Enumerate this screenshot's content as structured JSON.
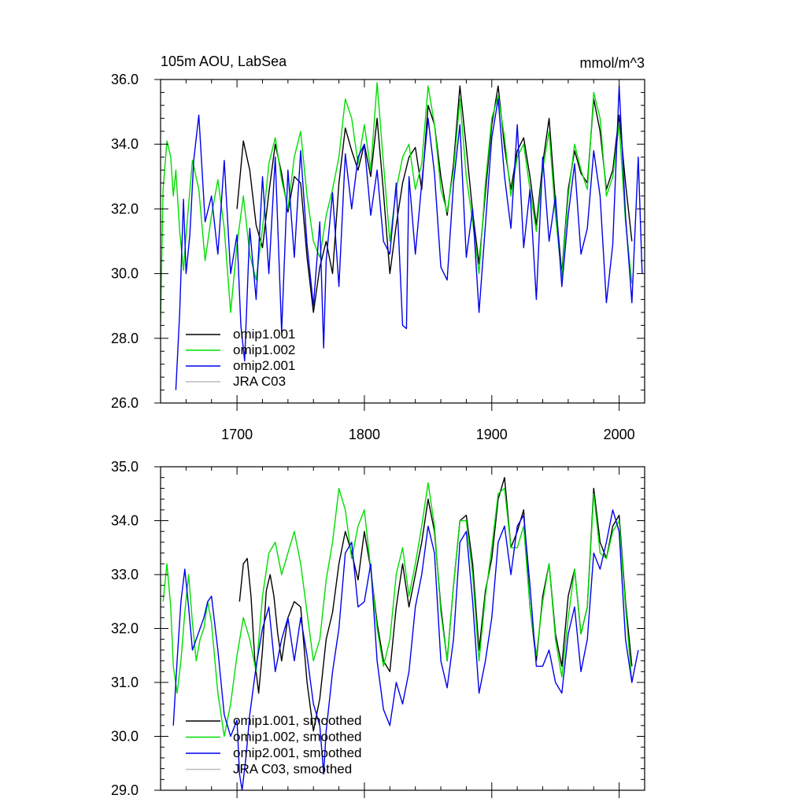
{
  "chart_data": [
    {
      "type": "line",
      "title": "105m AOU, LabSea",
      "units": "mmol/m^3",
      "xlim": [
        1640,
        2020
      ],
      "ylim": [
        26.0,
        36.0
      ],
      "x_ticks": [
        1700,
        1800,
        1900,
        2000
      ],
      "x_tick_labels": [
        "1700",
        "1800",
        "1900",
        "2000"
      ],
      "y_ticks": [
        26.0,
        28.0,
        30.0,
        32.0,
        34.0,
        36.0
      ],
      "y_tick_labels": [
        "26.0",
        "28.0",
        "30.0",
        "32.0",
        "34.0",
        "36.0"
      ],
      "legend": {
        "placement": "bottom-left",
        "entries": [
          "omip1.001",
          "omip1.002",
          "omip2.001",
          "JRA C03"
        ]
      },
      "series": [
        {
          "name": "omip1.001",
          "color": "#000000",
          "x": [
            1700,
            1705,
            1710,
            1715,
            1720,
            1725,
            1730,
            1735,
            1740,
            1745,
            1750,
            1755,
            1760,
            1765,
            1770,
            1775,
            1780,
            1785,
            1790,
            1795,
            1800,
            1805,
            1810,
            1815,
            1820,
            1825,
            1830,
            1835,
            1840,
            1845,
            1850,
            1855,
            1860,
            1865,
            1870,
            1875,
            1880,
            1885,
            1890,
            1895,
            1900,
            1905,
            1910,
            1915,
            1920,
            1925,
            1930,
            1935,
            1940,
            1945,
            1950,
            1955,
            1960,
            1965,
            1970,
            1975,
            1980,
            1985,
            1990,
            1995,
            2000,
            2005,
            2010
          ],
          "values": [
            32.0,
            34.1,
            33.2,
            31.5,
            30.8,
            32.5,
            34.0,
            33.1,
            31.9,
            33.0,
            32.8,
            30.5,
            28.8,
            30.2,
            31.0,
            30.0,
            32.8,
            34.5,
            33.8,
            33.2,
            34.0,
            33.0,
            34.8,
            32.5,
            30.0,
            31.5,
            32.8,
            33.6,
            33.9,
            32.6,
            35.2,
            34.6,
            33.0,
            31.8,
            33.4,
            35.8,
            33.9,
            31.9,
            30.3,
            32.5,
            34.6,
            35.8,
            33.9,
            32.6,
            33.8,
            34.2,
            33.0,
            31.5,
            33.4,
            34.8,
            32.2,
            30.0,
            32.6,
            33.8,
            33.1,
            32.8,
            35.4,
            34.4,
            32.6,
            33.2,
            34.9,
            32.8,
            31.0
          ]
        },
        {
          "name": "omip1.002",
          "color": "#00dd00",
          "x": [
            1640,
            1642,
            1645,
            1648,
            1650,
            1652,
            1655,
            1658,
            1660,
            1665,
            1670,
            1675,
            1680,
            1685,
            1690,
            1695,
            1700,
            1705,
            1710,
            1715,
            1720,
            1725,
            1730,
            1735,
            1740,
            1745,
            1750,
            1755,
            1760,
            1765,
            1770,
            1775,
            1780,
            1785,
            1790,
            1795,
            1800,
            1805,
            1810,
            1815,
            1820,
            1825,
            1830,
            1835,
            1840,
            1845,
            1850,
            1855,
            1860,
            1865,
            1870,
            1875,
            1880,
            1885,
            1890,
            1895,
            1900,
            1905,
            1910,
            1915,
            1920,
            1925,
            1930,
            1935,
            1940,
            1945,
            1950,
            1955,
            1960,
            1965,
            1970,
            1975,
            1980,
            1985,
            1990,
            1995,
            2000,
            2005,
            2010
          ],
          "values": [
            28.5,
            32.6,
            34.1,
            33.6,
            32.4,
            33.2,
            31.3,
            30.1,
            31.2,
            33.5,
            32.6,
            30.4,
            31.8,
            32.9,
            31.4,
            28.8,
            30.9,
            32.4,
            30.6,
            29.8,
            31.4,
            33.4,
            34.2,
            32.9,
            32.0,
            33.6,
            34.4,
            32.4,
            31.0,
            30.5,
            31.8,
            32.6,
            33.6,
            35.4,
            34.8,
            33.4,
            34.6,
            33.2,
            35.9,
            33.4,
            31.0,
            32.6,
            33.6,
            34.0,
            32.6,
            33.4,
            35.8,
            34.6,
            32.6,
            31.9,
            33.2,
            35.4,
            33.0,
            31.6,
            30.0,
            32.8,
            34.8,
            35.5,
            34.2,
            32.4,
            33.6,
            34.0,
            32.6,
            31.3,
            33.2,
            34.4,
            31.8,
            29.9,
            32.4,
            34.0,
            33.2,
            32.6,
            35.6,
            34.8,
            32.4,
            33.0,
            34.6,
            31.6,
            29.7
          ]
        },
        {
          "name": "omip2.001",
          "color": "#0000ee",
          "x": [
            1652,
            1655,
            1658,
            1660,
            1663,
            1666,
            1670,
            1675,
            1680,
            1685,
            1690,
            1695,
            1700,
            1703,
            1706,
            1710,
            1715,
            1720,
            1725,
            1730,
            1735,
            1740,
            1745,
            1750,
            1755,
            1760,
            1765,
            1768,
            1770,
            1775,
            1780,
            1785,
            1790,
            1795,
            1800,
            1805,
            1810,
            1815,
            1820,
            1825,
            1830,
            1833,
            1835,
            1840,
            1845,
            1850,
            1855,
            1860,
            1865,
            1870,
            1875,
            1880,
            1885,
            1890,
            1895,
            1900,
            1905,
            1910,
            1915,
            1920,
            1925,
            1930,
            1935,
            1940,
            1945,
            1950,
            1955,
            1960,
            1965,
            1970,
            1975,
            1980,
            1985,
            1990,
            1995,
            2000,
            2005,
            2010,
            2015,
            2018
          ],
          "values": [
            26.4,
            28.8,
            32.3,
            30.0,
            31.2,
            33.5,
            34.9,
            31.6,
            32.4,
            30.6,
            33.5,
            30.0,
            31.2,
            28.4,
            27.3,
            31.4,
            29.2,
            33.0,
            30.0,
            33.6,
            28.2,
            33.2,
            30.5,
            33.8,
            30.9,
            29.0,
            31.6,
            27.7,
            30.4,
            32.5,
            29.6,
            33.7,
            32.0,
            33.6,
            34.0,
            31.8,
            33.2,
            31.0,
            30.6,
            32.8,
            28.4,
            28.3,
            33.0,
            30.6,
            32.8,
            34.8,
            33.1,
            30.2,
            29.8,
            32.8,
            34.6,
            30.5,
            32.0,
            28.8,
            31.5,
            34.2,
            35.4,
            33.0,
            31.4,
            34.6,
            30.8,
            32.6,
            29.2,
            33.6,
            31.0,
            32.4,
            29.6,
            31.8,
            33.4,
            30.6,
            31.4,
            33.8,
            32.4,
            29.1,
            30.9,
            35.8,
            31.8,
            29.1,
            33.6,
            30.0
          ]
        },
        {
          "name": "JRA C03",
          "color": "#bbbbbb",
          "x": [],
          "values": []
        }
      ]
    },
    {
      "type": "line",
      "xlim": [
        1640,
        2020
      ],
      "ylim": [
        29.0,
        35.0
      ],
      "x_ticks": [
        1700,
        1800,
        1900,
        2000
      ],
      "y_ticks": [
        29.0,
        30.0,
        31.0,
        32.0,
        33.0,
        34.0,
        35.0
      ],
      "y_tick_labels": [
        "29.0",
        "30.0",
        "31.0",
        "32.0",
        "33.0",
        "34.0",
        "35.0"
      ],
      "legend": {
        "placement": "bottom-left",
        "entries": [
          "omip1.001, smoothed",
          "omip1.002, smoothed",
          "omip2.001, smoothed",
          "JRA C03, smoothed"
        ]
      },
      "series": [
        {
          "name": "omip1.001, smoothed",
          "color": "#000000",
          "x": [
            1702,
            1705,
            1708,
            1711,
            1714,
            1717,
            1720,
            1723,
            1726,
            1729,
            1732,
            1735,
            1740,
            1745,
            1750,
            1755,
            1760,
            1765,
            1770,
            1775,
            1780,
            1785,
            1790,
            1795,
            1800,
            1805,
            1810,
            1815,
            1820,
            1825,
            1830,
            1835,
            1840,
            1845,
            1850,
            1855,
            1860,
            1865,
            1870,
            1875,
            1880,
            1885,
            1890,
            1895,
            1900,
            1905,
            1910,
            1915,
            1920,
            1925,
            1930,
            1935,
            1940,
            1945,
            1950,
            1955,
            1960,
            1965,
            1970,
            1975,
            1980,
            1985,
            1990,
            1995,
            2000,
            2005,
            2010
          ],
          "values": [
            32.5,
            33.2,
            33.3,
            32.6,
            31.4,
            30.8,
            31.6,
            32.7,
            33.0,
            32.6,
            31.9,
            31.4,
            32.2,
            32.5,
            32.4,
            31.0,
            30.1,
            30.7,
            31.8,
            32.3,
            33.2,
            33.8,
            33.4,
            32.9,
            33.8,
            33.1,
            32.1,
            31.4,
            31.2,
            32.4,
            33.2,
            32.4,
            33.0,
            33.6,
            34.4,
            33.8,
            32.4,
            31.4,
            32.8,
            34.0,
            34.1,
            33.2,
            31.6,
            32.7,
            33.3,
            34.4,
            34.8,
            33.5,
            33.8,
            34.2,
            32.4,
            31.4,
            32.6,
            33.2,
            31.9,
            31.3,
            32.6,
            33.1,
            31.9,
            32.4,
            34.6,
            33.6,
            33.3,
            33.9,
            34.1,
            32.5,
            31.3
          ]
        },
        {
          "name": "omip1.002, smoothed",
          "color": "#00dd00",
          "x": [
            1642,
            1645,
            1648,
            1650,
            1653,
            1656,
            1659,
            1662,
            1665,
            1668,
            1671,
            1674,
            1677,
            1680,
            1685,
            1690,
            1695,
            1700,
            1705,
            1710,
            1715,
            1720,
            1725,
            1730,
            1735,
            1740,
            1745,
            1750,
            1755,
            1760,
            1765,
            1770,
            1775,
            1780,
            1785,
            1790,
            1795,
            1800,
            1805,
            1810,
            1815,
            1820,
            1825,
            1830,
            1835,
            1840,
            1845,
            1850,
            1855,
            1860,
            1865,
            1870,
            1875,
            1880,
            1885,
            1890,
            1895,
            1900,
            1905,
            1910,
            1915,
            1920,
            1925,
            1930,
            1935,
            1940,
            1945,
            1950,
            1955,
            1960,
            1965,
            1970,
            1975,
            1980,
            1985,
            1990,
            1995,
            2000,
            2005,
            2010
          ],
          "values": [
            32.5,
            33.2,
            32.4,
            31.3,
            30.8,
            31.4,
            32.3,
            33.0,
            32.1,
            31.4,
            31.8,
            32.0,
            32.5,
            32.1,
            30.8,
            30.0,
            30.6,
            31.5,
            32.2,
            31.8,
            31.2,
            32.6,
            33.4,
            33.6,
            33.0,
            33.4,
            33.8,
            33.2,
            32.3,
            31.4,
            31.8,
            32.9,
            33.6,
            34.6,
            34.2,
            33.3,
            33.9,
            34.2,
            33.1,
            32.0,
            31.3,
            31.8,
            33.0,
            33.5,
            32.6,
            33.2,
            33.9,
            34.7,
            33.9,
            32.3,
            31.4,
            32.8,
            34.0,
            34.0,
            33.0,
            31.4,
            32.6,
            33.5,
            34.5,
            34.6,
            33.5,
            33.5,
            33.9,
            32.4,
            31.5,
            32.5,
            33.2,
            31.8,
            31.1,
            32.2,
            33.1,
            31.9,
            32.4,
            34.5,
            33.4,
            33.3,
            33.8,
            34.0,
            32.4,
            31.0
          ]
        },
        {
          "name": "omip2.001, smoothed",
          "color": "#0000ee",
          "x": [
            1650,
            1653,
            1656,
            1659,
            1662,
            1665,
            1668,
            1671,
            1674,
            1677,
            1680,
            1685,
            1690,
            1695,
            1700,
            1702,
            1704,
            1707,
            1710,
            1715,
            1720,
            1725,
            1730,
            1735,
            1740,
            1745,
            1750,
            1755,
            1760,
            1765,
            1768,
            1770,
            1775,
            1780,
            1785,
            1790,
            1795,
            1800,
            1805,
            1810,
            1815,
            1820,
            1825,
            1830,
            1835,
            1840,
            1845,
            1850,
            1855,
            1860,
            1865,
            1870,
            1875,
            1880,
            1885,
            1890,
            1895,
            1900,
            1905,
            1910,
            1915,
            1920,
            1925,
            1930,
            1935,
            1940,
            1945,
            1950,
            1955,
            1960,
            1965,
            1970,
            1975,
            1980,
            1985,
            1990,
            1995,
            2000,
            2005,
            2010,
            2015
          ],
          "values": [
            30.2,
            31.4,
            32.5,
            33.1,
            32.4,
            31.6,
            31.8,
            32.0,
            32.2,
            32.5,
            32.6,
            31.6,
            30.4,
            30.0,
            30.3,
            29.3,
            29.0,
            29.6,
            30.4,
            31.3,
            32.0,
            32.4,
            31.2,
            31.8,
            32.2,
            31.4,
            32.2,
            31.5,
            30.6,
            30.2,
            29.3,
            30.1,
            31.2,
            32.0,
            33.4,
            33.6,
            32.4,
            32.5,
            33.2,
            31.4,
            30.5,
            30.2,
            31.0,
            30.6,
            31.2,
            32.4,
            33.0,
            33.9,
            33.4,
            31.4,
            30.9,
            31.8,
            33.6,
            33.8,
            32.5,
            30.8,
            31.4,
            32.2,
            33.6,
            33.9,
            33.0,
            33.9,
            34.1,
            32.8,
            31.3,
            31.3,
            31.6,
            31.0,
            30.8,
            31.9,
            32.4,
            31.2,
            31.8,
            33.4,
            33.1,
            33.6,
            34.2,
            33.8,
            31.8,
            31.0,
            31.6
          ]
        },
        {
          "name": "JRA C03, smoothed",
          "color": "#bbbbbb",
          "x": [],
          "values": []
        }
      ]
    }
  ]
}
